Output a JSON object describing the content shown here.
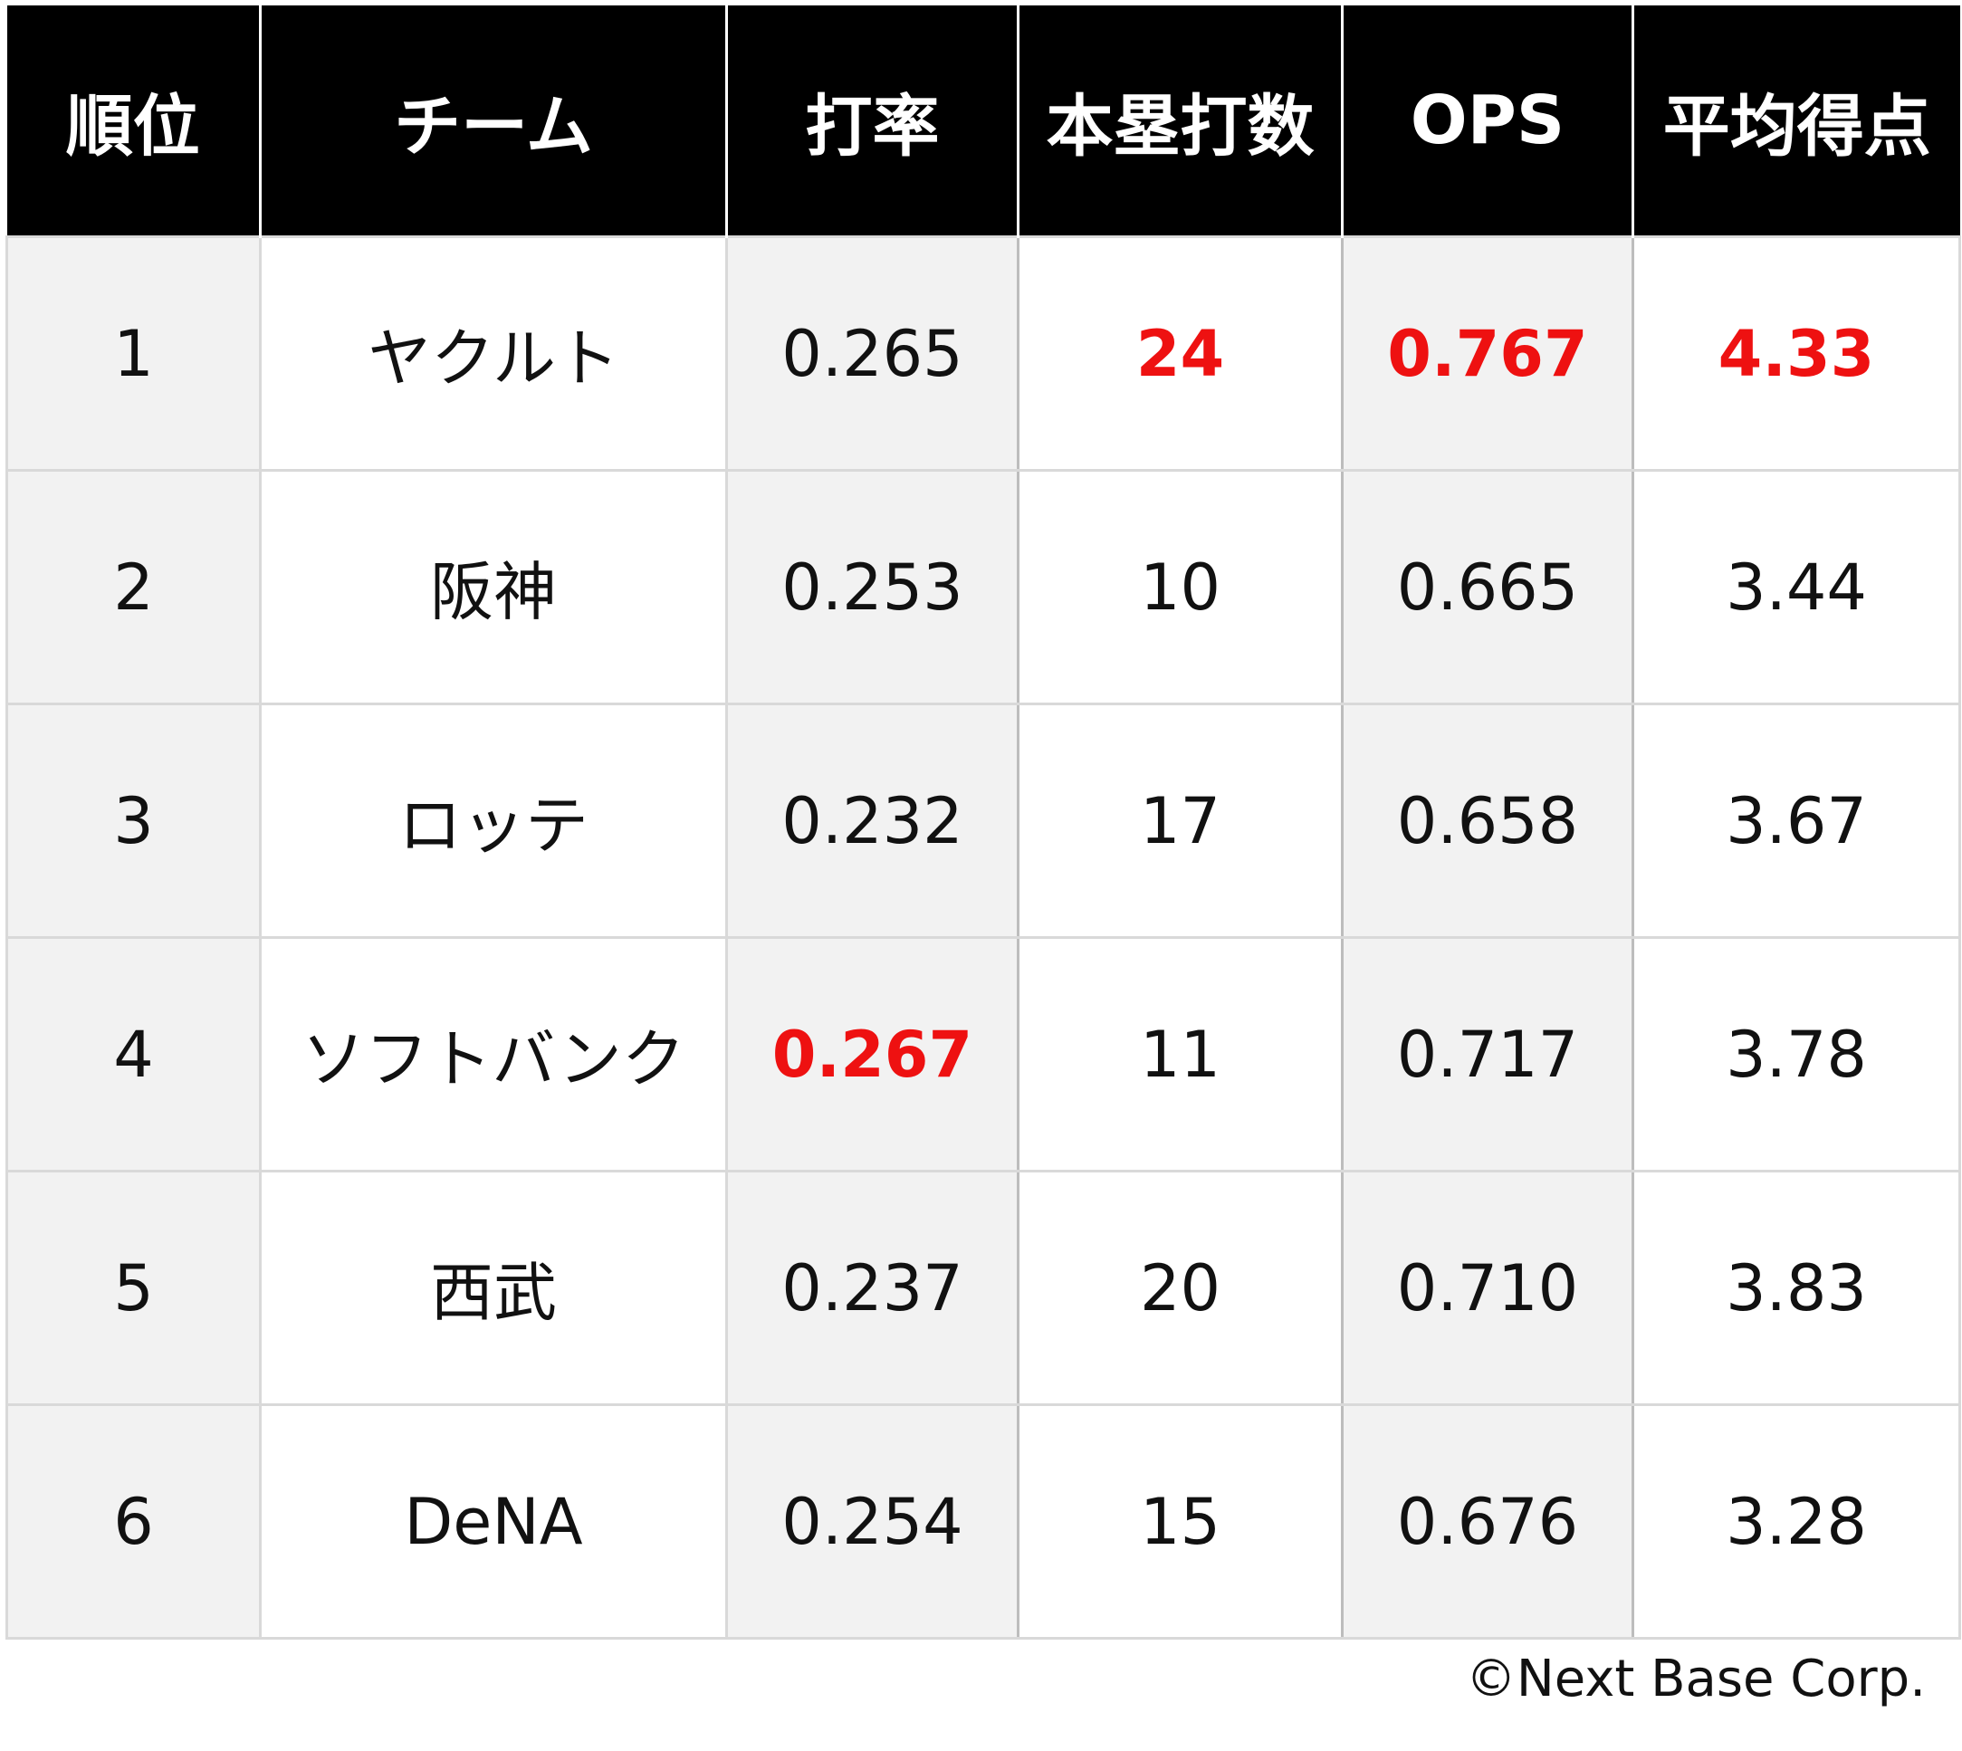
{
  "chart_data": {
    "type": "table",
    "columns": [
      "順位",
      "チーム",
      "打率",
      "本塁打数",
      "OPS",
      "平均得点"
    ],
    "rows": [
      [
        "1",
        "ヤクルト",
        "0.265",
        "24",
        "0.767",
        "4.33"
      ],
      [
        "2",
        "阪神",
        "0.253",
        "10",
        "0.665",
        "3.44"
      ],
      [
        "3",
        "ロッテ",
        "0.232",
        "17",
        "0.658",
        "3.67"
      ],
      [
        "4",
        "ソフトバンク",
        "0.267",
        "11",
        "0.717",
        "3.78"
      ],
      [
        "5",
        "西武",
        "0.237",
        "20",
        "0.710",
        "3.83"
      ],
      [
        "6",
        "DeNA",
        "0.254",
        "15",
        "0.676",
        "3.28"
      ]
    ],
    "highlighted_cells": [
      [
        0,
        3
      ],
      [
        0,
        4
      ],
      [
        0,
        5
      ],
      [
        3,
        2
      ]
    ],
    "highlight_color": "#ee1111",
    "shaded_columns": [
      0,
      2,
      4
    ],
    "shade_color": "#f2f2f2",
    "header_background": "#000000",
    "header_text_color": "#ffffff"
  },
  "credit": "©Next Base Corp."
}
